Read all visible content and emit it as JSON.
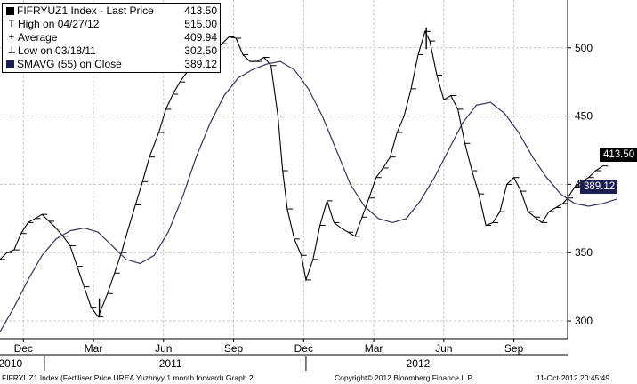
{
  "colors": {
    "price": "#000000",
    "sma": "#33355e",
    "grid": "#c8c8c8",
    "sma_tag": "#1b1f4f"
  },
  "legend": {
    "rows": [
      {
        "symbol": "swatch-icon",
        "label": "FIFRYUZ1 Index - Last Price",
        "value": "413.50"
      },
      {
        "symbol": "high-marker-icon",
        "label": "High on 04/27/12",
        "value": "515.00"
      },
      {
        "symbol": "average-marker-icon",
        "label": "Average",
        "value": "409.94"
      },
      {
        "symbol": "low-marker-icon",
        "label": "Low on 03/18/11",
        "value": "302.50"
      },
      {
        "symbol": "sma-swatch-icon",
        "label": "SMAVG (55) on Close",
        "value": "389.12"
      }
    ]
  },
  "tags": {
    "last_price": "413.50",
    "sma": "389.12"
  },
  "footer": {
    "left": "FIFRYUZ1 Index (Fertiliser Price UREA Yuzhnyy 1 month forward) Graph 2",
    "center": "Copyright© 2012 Bloomberg Finance L.P.",
    "right": "11-Oct-2012 20:45:49"
  },
  "chart_data": {
    "type": "line",
    "title": "",
    "ylim": [
      287,
      535
    ],
    "y_ticks": [
      300,
      350,
      400,
      450,
      500
    ],
    "x_range_months": [
      0,
      24.3
    ],
    "x_ticks": [
      {
        "label": "Dec",
        "m": 1
      },
      {
        "label": "Mar",
        "m": 4
      },
      {
        "label": "Jun",
        "m": 7
      },
      {
        "label": "Sep",
        "m": 10
      },
      {
        "label": "Dec",
        "m": 13
      },
      {
        "label": "Mar",
        "m": 16
      },
      {
        "label": "Jun",
        "m": 19
      },
      {
        "label": "Sep",
        "m": 22
      }
    ],
    "year_labels": [
      {
        "label": "2010",
        "m": 0.45
      },
      {
        "label": "2011",
        "m": 7.3
      },
      {
        "label": "2012",
        "m": 17.9
      }
    ],
    "year_dividers": [
      1.9,
      13.1
    ],
    "grid": true,
    "series": [
      {
        "name": "FIFRYUZ1 Index - Last Price",
        "points": [
          [
            0.0,
            345
          ],
          [
            0.3,
            350
          ],
          [
            0.6,
            352
          ],
          [
            0.9,
            364
          ],
          [
            1.2,
            372
          ],
          [
            1.5,
            375
          ],
          [
            1.8,
            378
          ],
          [
            2.1,
            373
          ],
          [
            2.4,
            368
          ],
          [
            2.7,
            362
          ],
          [
            3.0,
            355
          ],
          [
            3.3,
            340
          ],
          [
            3.6,
            325
          ],
          [
            3.9,
            310
          ],
          [
            4.2,
            303
          ],
          [
            4.6,
            320
          ],
          [
            4.9,
            335
          ],
          [
            5.2,
            350
          ],
          [
            5.5,
            368
          ],
          [
            5.8,
            385
          ],
          [
            6.1,
            402
          ],
          [
            6.4,
            420
          ],
          [
            6.8,
            438
          ],
          [
            7.1,
            455
          ],
          [
            7.4,
            466
          ],
          [
            7.7,
            475
          ],
          [
            8.0,
            482
          ],
          [
            8.3,
            487
          ],
          [
            8.6,
            490
          ],
          [
            8.9,
            492
          ],
          [
            9.2,
            497
          ],
          [
            9.5,
            503
          ],
          [
            9.8,
            508
          ],
          [
            10.1,
            507
          ],
          [
            10.4,
            495
          ],
          [
            10.7,
            490
          ],
          [
            11.0,
            490
          ],
          [
            11.3,
            493
          ],
          [
            11.6,
            487
          ],
          [
            11.9,
            450
          ],
          [
            12.1,
            410
          ],
          [
            12.3,
            382
          ],
          [
            12.6,
            360
          ],
          [
            12.9,
            348
          ],
          [
            13.1,
            330
          ],
          [
            13.4,
            345
          ],
          [
            13.7,
            370
          ],
          [
            14.0,
            388
          ],
          [
            14.3,
            372
          ],
          [
            14.6,
            368
          ],
          [
            14.9,
            365
          ],
          [
            15.2,
            362
          ],
          [
            15.5,
            376
          ],
          [
            15.8,
            390
          ],
          [
            16.1,
            405
          ],
          [
            16.4,
            412
          ],
          [
            16.7,
            420
          ],
          [
            17.0,
            438
          ],
          [
            17.3,
            450
          ],
          [
            17.6,
            470
          ],
          [
            17.9,
            495
          ],
          [
            18.2,
            512
          ],
          [
            18.4,
            505
          ],
          [
            18.7,
            480
          ],
          [
            19.0,
            462
          ],
          [
            19.3,
            465
          ],
          [
            19.6,
            455
          ],
          [
            19.9,
            430
          ],
          [
            20.2,
            410
          ],
          [
            20.5,
            393
          ],
          [
            20.8,
            370
          ],
          [
            21.1,
            372
          ],
          [
            21.4,
            380
          ],
          [
            21.7,
            400
          ],
          [
            22.0,
            405
          ],
          [
            22.3,
            395
          ],
          [
            22.6,
            380
          ],
          [
            22.9,
            376
          ],
          [
            23.2,
            372
          ],
          [
            23.5,
            380
          ],
          [
            23.8,
            383
          ],
          [
            24.1,
            386
          ],
          [
            24.3,
            390
          ],
          [
            24.6,
            398
          ],
          [
            24.9,
            402
          ],
          [
            25.2,
            405
          ],
          [
            25.5,
            410
          ],
          [
            25.8,
            413.5
          ]
        ]
      },
      {
        "name": "SMAVG (55) on Close",
        "points": [
          [
            0.0,
            292
          ],
          [
            0.6,
            310
          ],
          [
            1.2,
            330
          ],
          [
            1.8,
            348
          ],
          [
            2.4,
            360
          ],
          [
            3.0,
            366
          ],
          [
            3.6,
            368
          ],
          [
            4.2,
            365
          ],
          [
            4.8,
            355
          ],
          [
            5.4,
            345
          ],
          [
            6.0,
            342
          ],
          [
            6.6,
            348
          ],
          [
            7.2,
            365
          ],
          [
            7.8,
            390
          ],
          [
            8.4,
            420
          ],
          [
            9.0,
            445
          ],
          [
            9.6,
            465
          ],
          [
            10.2,
            478
          ],
          [
            10.8,
            484
          ],
          [
            11.4,
            488
          ],
          [
            12.0,
            490
          ],
          [
            12.6,
            484
          ],
          [
            13.2,
            470
          ],
          [
            13.8,
            450
          ],
          [
            14.4,
            425
          ],
          [
            15.0,
            400
          ],
          [
            15.6,
            384
          ],
          [
            16.2,
            375
          ],
          [
            16.8,
            372
          ],
          [
            17.4,
            375
          ],
          [
            18.0,
            388
          ],
          [
            18.6,
            405
          ],
          [
            19.2,
            425
          ],
          [
            19.8,
            445
          ],
          [
            20.4,
            458
          ],
          [
            21.0,
            460
          ],
          [
            21.6,
            452
          ],
          [
            22.2,
            438
          ],
          [
            22.8,
            420
          ],
          [
            23.4,
            405
          ],
          [
            24.0,
            393
          ],
          [
            24.6,
            386
          ],
          [
            25.2,
            384
          ],
          [
            25.8,
            386
          ],
          [
            26.4,
            389.12
          ]
        ]
      }
    ],
    "markers": {
      "high": {
        "m": 18.25,
        "value": 515.0
      },
      "low": {
        "m": 4.25,
        "value": 302.5
      }
    }
  }
}
